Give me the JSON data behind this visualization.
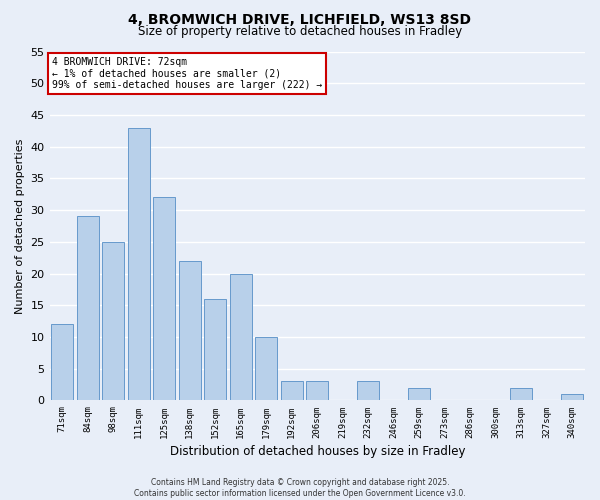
{
  "title": "4, BROMWICH DRIVE, LICHFIELD, WS13 8SD",
  "subtitle": "Size of property relative to detached houses in Fradley",
  "xlabel": "Distribution of detached houses by size in Fradley",
  "ylabel": "Number of detached properties",
  "bar_labels": [
    "71sqm",
    "84sqm",
    "98sqm",
    "111sqm",
    "125sqm",
    "138sqm",
    "152sqm",
    "165sqm",
    "179sqm",
    "192sqm",
    "206sqm",
    "219sqm",
    "232sqm",
    "246sqm",
    "259sqm",
    "273sqm",
    "286sqm",
    "300sqm",
    "313sqm",
    "327sqm",
    "340sqm"
  ],
  "bar_values": [
    12,
    29,
    25,
    43,
    32,
    22,
    16,
    20,
    10,
    3,
    3,
    0,
    3,
    0,
    2,
    0,
    0,
    0,
    2,
    0,
    1
  ],
  "bar_color": "#b8d0ea",
  "bar_edge_color": "#6699cc",
  "annotation_title": "4 BROMWICH DRIVE: 72sqm",
  "annotation_line1": "← 1% of detached houses are smaller (2)",
  "annotation_line2": "99% of semi-detached houses are larger (222) →",
  "annotation_box_color": "#ffffff",
  "annotation_box_edge": "#cc0000",
  "ylim": [
    0,
    55
  ],
  "yticks": [
    0,
    5,
    10,
    15,
    20,
    25,
    30,
    35,
    40,
    45,
    50,
    55
  ],
  "footer_line1": "Contains HM Land Registry data © Crown copyright and database right 2025.",
  "footer_line2": "Contains public sector information licensed under the Open Government Licence v3.0.",
  "bg_color": "#e8eef8",
  "grid_color": "#ffffff"
}
